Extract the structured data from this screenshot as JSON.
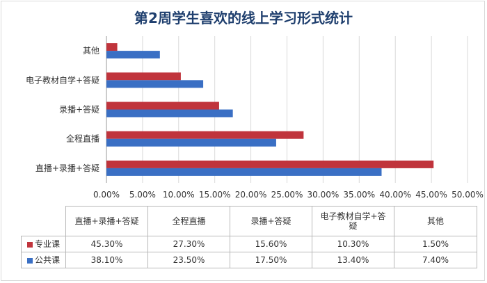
{
  "chart_data": {
    "type": "bar",
    "orientation": "horizontal",
    "title": "第2周学生喜欢的线上学习形式统计",
    "categories": [
      "直播+录播+答疑",
      "全程直播",
      "录播+答疑",
      "电子教材自学+答疑",
      "其他"
    ],
    "table_headers": [
      "直播+录播+答疑",
      "全程直播",
      "录播+答疑",
      "电子教材自学+答\n疑",
      "其他"
    ],
    "series": [
      {
        "name": "专业课",
        "color": "#c0343c",
        "values": [
          45.3,
          27.3,
          15.6,
          10.3,
          1.5
        ],
        "labels": [
          "45.30%",
          "27.30%",
          "15.60%",
          "10.30%",
          "1.50%"
        ]
      },
      {
        "name": "公共课",
        "color": "#3a6fc4",
        "values": [
          38.1,
          23.5,
          17.5,
          13.4,
          7.4
        ],
        "labels": [
          "38.10%",
          "23.50%",
          "17.50%",
          "13.40%",
          "7.40%"
        ]
      }
    ],
    "xlim": [
      0,
      50
    ],
    "xticks": [
      "0.00%",
      "5.00%",
      "10.00%",
      "15.00%",
      "20.00%",
      "25.00%",
      "30.00%",
      "35.00%",
      "40.00%",
      "45.00%",
      "50.00%"
    ],
    "grid": true,
    "legend": "data-table"
  }
}
